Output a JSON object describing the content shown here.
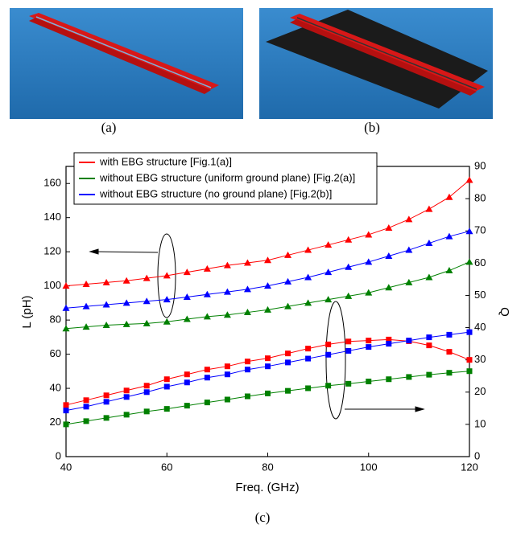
{
  "panels": [
    "(a)",
    "(b)"
  ],
  "chart_data": {
    "type": "line",
    "caption": "(c)",
    "x_label": "Freq. (GHz)",
    "y_label": "L (pH)",
    "y2_label": "Q",
    "x": [
      40,
      44,
      48,
      52,
      56,
      60,
      64,
      68,
      72,
      76,
      80,
      84,
      88,
      92,
      96,
      100,
      104,
      108,
      112,
      116,
      120
    ],
    "xlim": [
      40,
      120
    ],
    "xticks": [
      40,
      60,
      80,
      100,
      120
    ],
    "ylim": [
      0,
      170
    ],
    "yticks": [
      0,
      20,
      40,
      60,
      80,
      100,
      120,
      140,
      160
    ],
    "y2lim": [
      0,
      90
    ],
    "y2ticks": [
      0,
      10,
      20,
      30,
      40,
      50,
      60,
      70,
      80,
      90
    ],
    "legend": "top-left",
    "series": [
      {
        "name": "with EBG structure [Fig.1(a)]",
        "color": "#ff0000",
        "marker": "triangle",
        "values": [
          100,
          101,
          102,
          103,
          104.5,
          106,
          108,
          110,
          112,
          113.5,
          115,
          118,
          121,
          124,
          127,
          130,
          134,
          139,
          145,
          152,
          162
        ]
      },
      {
        "name": "without EBG structure (uniform ground plane) [Fig.2(a)]",
        "color": "#008000",
        "marker": "triangle",
        "values": [
          75,
          76,
          77,
          77.5,
          78,
          79,
          80.5,
          82,
          83,
          84.5,
          86,
          88,
          90,
          92,
          94,
          96,
          99,
          102,
          105,
          109,
          114
        ]
      },
      {
        "name": "without EBG structure (no ground plane) [Fig.2(b)]",
        "color": "#0000ff",
        "marker": "triangle",
        "values": [
          87,
          88,
          89,
          90,
          91,
          92,
          93.5,
          95,
          96.5,
          98,
          100,
          102.5,
          105,
          108,
          111,
          114,
          117.5,
          121,
          125,
          129,
          132
        ]
      },
      {
        "color": "#ff0000",
        "marker": "square",
        "axis": "y2",
        "values": [
          16,
          17.5,
          19,
          20.5,
          22,
          24,
          25.5,
          27,
          28,
          29.5,
          30.5,
          32,
          33.5,
          34.8,
          35.7,
          36,
          36.3,
          35.8,
          34.5,
          32.5,
          30
        ]
      },
      {
        "color": "#008000",
        "marker": "square",
        "axis": "y2",
        "values": [
          10,
          11,
          12,
          13,
          14,
          14.8,
          15.8,
          16.8,
          17.7,
          18.7,
          19.6,
          20.4,
          21.2,
          22,
          22.6,
          23.3,
          24,
          24.7,
          25.4,
          26,
          26.5
        ]
      },
      {
        "color": "#0000ff",
        "marker": "square",
        "axis": "y2",
        "values": [
          14.3,
          15.5,
          17,
          18.5,
          20,
          21.7,
          23,
          24.5,
          25.5,
          27,
          28,
          29.2,
          30.4,
          31.6,
          32.8,
          34,
          35,
          36,
          37,
          37.8,
          38.6
        ]
      }
    ]
  }
}
